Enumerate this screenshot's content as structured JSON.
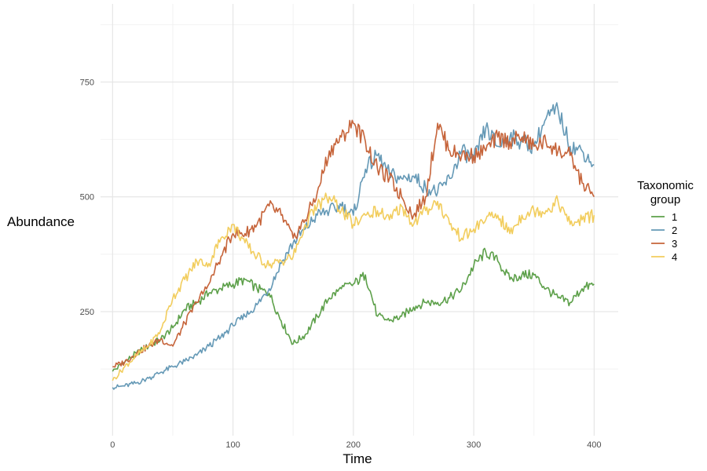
{
  "chart_data": {
    "type": "line",
    "title": "",
    "xlabel": "Time",
    "ylabel": "Abundance",
    "xlim": [
      -10,
      420
    ],
    "ylim": [
      -20,
      920
    ],
    "xticks": [
      0,
      100,
      200,
      300,
      400
    ],
    "yticks": [
      250,
      500,
      750
    ],
    "x_tick_labels": [
      "0",
      "100",
      "200",
      "300",
      "400"
    ],
    "y_tick_labels": [
      "250",
      "500",
      "750"
    ],
    "x_minor_gridlines": [
      50,
      150,
      250,
      350
    ],
    "y_minor_gridlines": [
      125,
      375,
      625,
      875
    ],
    "grid": true,
    "legend": {
      "title_line1": "Taxonomic",
      "title_line2": "group",
      "placement": "right",
      "entries": [
        "1",
        "2",
        "3",
        "4"
      ]
    },
    "x": [
      0,
      10,
      20,
      30,
      40,
      50,
      60,
      70,
      80,
      90,
      100,
      110,
      120,
      130,
      140,
      150,
      160,
      170,
      180,
      190,
      200,
      210,
      220,
      230,
      240,
      250,
      260,
      270,
      280,
      290,
      300,
      310,
      320,
      330,
      340,
      350,
      360,
      370,
      380,
      390,
      400
    ],
    "series": [
      {
        "name": "1",
        "color": "#5da04a",
        "values": [
          120,
          140,
          160,
          175,
          190,
          215,
          255,
          270,
          290,
          300,
          310,
          320,
          300,
          290,
          230,
          180,
          200,
          240,
          280,
          300,
          310,
          330,
          240,
          230,
          240,
          260,
          270,
          270,
          280,
          300,
          350,
          380,
          360,
          320,
          330,
          330,
          300,
          280,
          270,
          300,
          310
        ]
      },
      {
        "name": "2",
        "color": "#6599b6",
        "values": [
          85,
          88,
          95,
          105,
          118,
          130,
          142,
          155,
          175,
          195,
          220,
          240,
          265,
          300,
          355,
          400,
          430,
          460,
          470,
          480,
          460,
          560,
          590,
          550,
          540,
          545,
          520,
          510,
          540,
          600,
          580,
          650,
          610,
          630,
          620,
          610,
          670,
          690,
          610,
          600,
          570
        ]
      },
      {
        "name": "3",
        "color": "#c6643a",
        "values": [
          130,
          140,
          160,
          175,
          190,
          175,
          225,
          270,
          310,
          370,
          420,
          420,
          440,
          480,
          460,
          410,
          450,
          510,
          600,
          630,
          660,
          620,
          560,
          540,
          500,
          460,
          500,
          660,
          600,
          590,
          590,
          600,
          630,
          620,
          630,
          610,
          620,
          600,
          590,
          530,
          500
        ]
      },
      {
        "name": "4",
        "color": "#f2cd5d",
        "values": [
          100,
          130,
          155,
          175,
          210,
          280,
          320,
          360,
          355,
          410,
          440,
          400,
          370,
          350,
          360,
          370,
          440,
          480,
          500,
          470,
          440,
          460,
          470,
          450,
          480,
          440,
          470,
          490,
          440,
          410,
          430,
          450,
          460,
          420,
          460,
          470,
          470,
          490,
          440,
          450,
          460
        ]
      }
    ]
  }
}
